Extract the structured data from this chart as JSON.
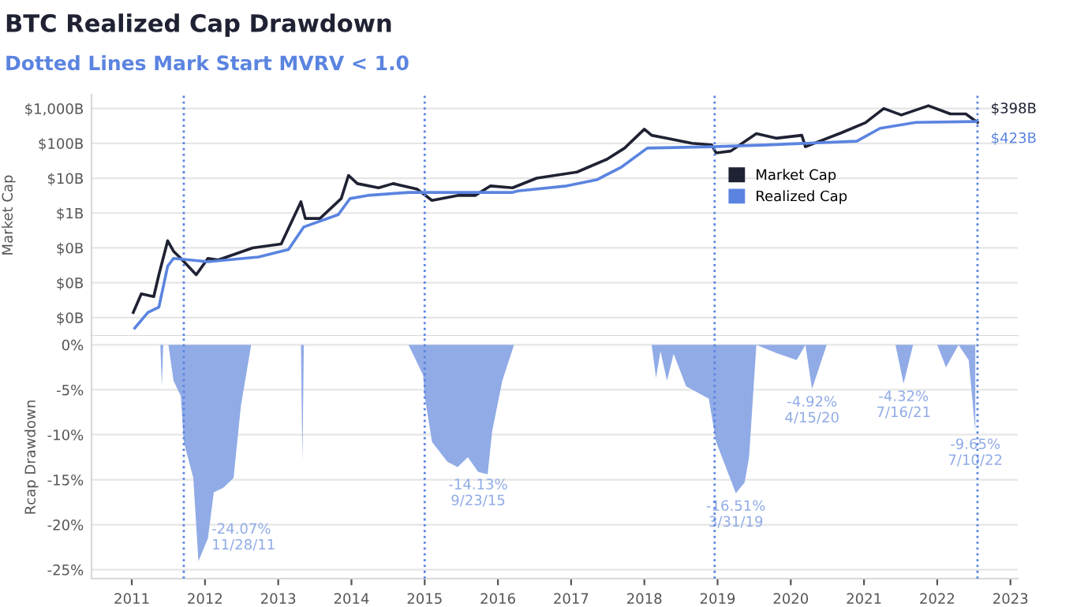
{
  "chart_data": [
    {
      "type": "line",
      "title": "BTC Realized Cap Drawdown",
      "subtitle": "Dotted Lines Mark Start MVRV < 1.0",
      "ylabel": "Market Cap",
      "log": true,
      "grid": "y",
      "legend": "right",
      "tick_labels": "y",
      "xlim": [
        2010.45,
        2023.1
      ],
      "ylim": [
        0.0003,
        2500
      ],
      "yticks": [
        {
          "value": 1000,
          "label": "$1,000B"
        },
        {
          "value": 100,
          "label": "$100B"
        },
        {
          "value": 10,
          "label": "$10B"
        },
        {
          "value": 1,
          "label": "$1B"
        },
        {
          "value": 0.1,
          "label": "$0B"
        },
        {
          "value": 0.01,
          "label": "$0B"
        },
        {
          "value": 0.001,
          "label": "$0B"
        }
      ],
      "series": [
        {
          "name": "Market Cap",
          "color": "#1f2233",
          "x": [
            2011.02,
            2011.13,
            2011.3,
            2011.37,
            2011.49,
            2011.57,
            2011.67,
            2011.88,
            2012.04,
            2012.18,
            2012.65,
            2013.04,
            2013.31,
            2013.37,
            2013.57,
            2013.86,
            2013.96,
            2014.08,
            2014.37,
            2014.57,
            2014.9,
            2015.1,
            2015.45,
            2015.69,
            2015.9,
            2016.2,
            2016.53,
            2017.08,
            2017.49,
            2017.73,
            2018.0,
            2018.1,
            2018.3,
            2018.65,
            2018.92,
            2018.98,
            2019.18,
            2019.53,
            2019.8,
            2020.15,
            2020.2,
            2020.69,
            2021.02,
            2021.27,
            2021.51,
            2021.88,
            2022.18,
            2022.39,
            2022.55
          ],
          "values": [
            0.0014,
            0.0048,
            0.004,
            0.017,
            0.16,
            0.08,
            0.05,
            0.017,
            0.05,
            0.045,
            0.1,
            0.13,
            2.1,
            0.7,
            0.7,
            2.6,
            12,
            7,
            5.3,
            7,
            4.8,
            2.3,
            3.2,
            3.2,
            6,
            5.3,
            10,
            15,
            35,
            73,
            255,
            170,
            140,
            100,
            90,
            53,
            60,
            190,
            140,
            170,
            80,
            200,
            390,
            1000,
            650,
            1200,
            700,
            700,
            398
          ]
        },
        {
          "name": "Realized Cap",
          "color": "#5b84e0",
          "x": [
            2011.04,
            2011.22,
            2011.37,
            2011.49,
            2011.57,
            2012.04,
            2012.73,
            2013.14,
            2013.35,
            2013.82,
            2013.98,
            2014.22,
            2014.78,
            2016.2,
            2016.27,
            2016.94,
            2017.35,
            2017.69,
            2018.04,
            2018.92,
            2019.67,
            2020.9,
            2021.22,
            2021.71,
            2022.53
          ],
          "values": [
            0.0005,
            0.0014,
            0.002,
            0.03,
            0.05,
            0.04,
            0.055,
            0.09,
            0.4,
            0.9,
            2.6,
            3.2,
            3.9,
            3.9,
            4.3,
            6,
            9,
            21,
            73,
            80,
            90,
            115,
            270,
            400,
            423
          ]
        }
      ],
      "annotations": [
        {
          "text": "$398B",
          "x": 2022.55,
          "y": 398
        },
        {
          "text": "$423B",
          "x": 2022.55,
          "y": 423
        }
      ],
      "ref_lines": [
        {
          "axis": "x",
          "value": 2011.71,
          "color": "#5b84e0",
          "line_style": "dotted"
        },
        {
          "axis": "x",
          "value": 2015.0,
          "color": "#5b84e0",
          "line_style": "dotted"
        },
        {
          "axis": "x",
          "value": 2018.96,
          "color": "#5b84e0",
          "line_style": "dotted"
        },
        {
          "axis": "x",
          "value": 2022.55,
          "color": "#5b84e0",
          "line_style": "dotted"
        }
      ]
    },
    {
      "type": "area",
      "ylabel": "Rcap Drawdown",
      "grid": "y",
      "xlim": [
        2010.45,
        2023.1
      ],
      "ylim": [
        -26,
        1
      ],
      "xticks": [
        2011,
        2012,
        2013,
        2014,
        2015,
        2016,
        2017,
        2018,
        2019,
        2020,
        2021,
        2022,
        2023
      ],
      "yticks": [
        {
          "value": 0,
          "label": "0%"
        },
        {
          "value": -5,
          "label": "-5%"
        },
        {
          "value": -10,
          "label": "-10%"
        },
        {
          "value": -15,
          "label": "-15%"
        },
        {
          "value": -20,
          "label": "-20%"
        },
        {
          "value": -25,
          "label": "-25%"
        }
      ],
      "series": [
        {
          "color": "#90abe6",
          "x": [
            2011.39,
            2011.41,
            2011.43,
            2011.5,
            2011.57,
            2011.67,
            2011.71,
            2011.84,
            2011.91,
            2012.04,
            2012.12,
            2012.25,
            2012.39,
            2012.49,
            2012.63,
            2013.31,
            2013.33,
            2013.35,
            2014.78,
            2014.98,
            2015.0,
            2015.1,
            2015.31,
            2015.45,
            2015.59,
            2015.73,
            2015.86,
            2015.92,
            2016.06,
            2016.22,
            2018.1,
            2018.16,
            2018.22,
            2018.31,
            2018.4,
            2018.57,
            2018.88,
            2018.98,
            2019.25,
            2019.37,
            2019.43,
            2019.53,
            2019.8,
            2020.08,
            2020.2,
            2020.29,
            2020.49,
            2021.43,
            2021.54,
            2021.67,
            2022.0,
            2022.12,
            2022.29,
            2022.43,
            2022.52
          ],
          "values": [
            0,
            -4.6,
            0,
            0,
            -4,
            -5.7,
            -10.8,
            -14.8,
            -24.07,
            -21.5,
            -16.4,
            -15.9,
            -14.8,
            -6.8,
            0,
            0,
            -13,
            0,
            0,
            -3.4,
            -5.7,
            -10.8,
            -13,
            -13.6,
            -12.5,
            -14.13,
            -14.4,
            -9.7,
            -4,
            0,
            0,
            -3.7,
            -0.7,
            -4,
            -1,
            -4.6,
            -6,
            -10.8,
            -16.51,
            -15.3,
            -12.5,
            0,
            -0.9,
            -1.7,
            0,
            -4.92,
            0,
            0,
            -4.32,
            0,
            0,
            -2.5,
            0,
            -1.7,
            -9.65
          ]
        }
      ],
      "annotations": [
        {
          "text": "-24.07%\n11/28/11",
          "x": 2011.91,
          "y": -24.07
        },
        {
          "text": "-14.13%\n9/23/15",
          "x": 2015.73,
          "y": -14.13
        },
        {
          "text": "-16.51%\n3/31/19",
          "x": 2019.25,
          "y": -16.51
        },
        {
          "text": "-4.92%\n4/15/20",
          "x": 2020.29,
          "y": -4.92
        },
        {
          "text": "-4.32%\n7/16/21",
          "x": 2021.54,
          "y": -4.32
        },
        {
          "text": "-9.65%\n7/10/22",
          "x": 2022.52,
          "y": -9.65
        }
      ],
      "ref_lines": [
        {
          "axis": "x",
          "value": 2011.71,
          "color": "#5b84e0",
          "line_style": "dotted"
        },
        {
          "axis": "x",
          "value": 2015.0,
          "color": "#5b84e0",
          "line_style": "dotted"
        },
        {
          "axis": "x",
          "value": 2018.96,
          "color": "#5b84e0",
          "line_style": "dotted"
        },
        {
          "axis": "x",
          "value": 2022.55,
          "color": "#5b84e0",
          "line_style": "dotted"
        }
      ]
    }
  ]
}
